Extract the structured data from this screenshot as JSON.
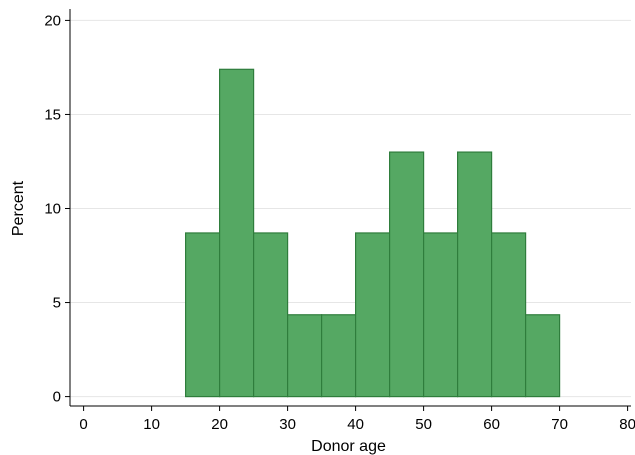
{
  "chart_data": {
    "type": "bar",
    "title": "",
    "xlabel": "Donor age",
    "ylabel": "Percent",
    "xlim": [
      -2,
      80.5
    ],
    "ylim": [
      -0.5,
      20.5
    ],
    "x_ticks": [
      "0",
      "10",
      "20",
      "30",
      "40",
      "50",
      "60",
      "70",
      "80"
    ],
    "y_ticks": [
      "0",
      "5",
      "10",
      "15",
      "20"
    ],
    "grid": true,
    "bin_width": 5,
    "bins": [
      {
        "start": 15,
        "end": 20,
        "value": 8.7
      },
      {
        "start": 20,
        "end": 25,
        "value": 17.4
      },
      {
        "start": 25,
        "end": 30,
        "value": 8.7
      },
      {
        "start": 30,
        "end": 35,
        "value": 4.35
      },
      {
        "start": 35,
        "end": 40,
        "value": 4.35
      },
      {
        "start": 40,
        "end": 45,
        "value": 8.7
      },
      {
        "start": 45,
        "end": 50,
        "value": 13.0
      },
      {
        "start": 50,
        "end": 55,
        "value": 8.7
      },
      {
        "start": 55,
        "end": 60,
        "value": 13.0
      },
      {
        "start": 60,
        "end": 65,
        "value": 8.7
      },
      {
        "start": 65,
        "end": 70,
        "value": 4.35
      }
    ],
    "colors": {
      "bar_fill": "#55a863",
      "bar_stroke": "#2f7d3c",
      "grid": "#e6e6e6",
      "axis": "#000000"
    }
  }
}
